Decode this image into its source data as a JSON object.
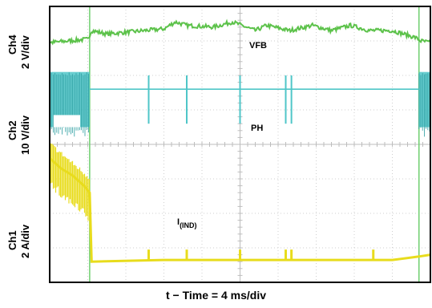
{
  "chart_data": {
    "type": "line",
    "title": "",
    "xlabel": "t − Time = 4 ms/div",
    "x_divisions": 10,
    "y_divisions": 8,
    "grid": true,
    "channel_labels": [
      {
        "ch": "Ch4",
        "scale": "2 V/div"
      },
      {
        "ch": "Ch2",
        "scale": "10 V/div"
      },
      {
        "ch": "Ch1",
        "scale": "2 A/div"
      }
    ],
    "signal_labels": {
      "vfb": "VFB",
      "ph": "PH",
      "iind_main": "I",
      "iind_sub": "(IND)"
    },
    "colors": {
      "ch4": "#5cc24a",
      "ch2": "#4fc6c8",
      "ch1": "#e8dc1c",
      "cursor": "#6fcf6f"
    },
    "cursors_div": [
      1.05,
      9.7
    ],
    "series": [
      {
        "channel": "Ch4",
        "label_ref": "vfb",
        "x_div": [
          0,
          0.5,
          1.0,
          1.1,
          1.5,
          2.0,
          2.5,
          3.0,
          3.3,
          3.6,
          4.3,
          4.8,
          5.4,
          5.7,
          6.3,
          6.9,
          7.4,
          7.9,
          8.4,
          9.0,
          9.6,
          9.75,
          10.0
        ],
        "y_div": [
          6.95,
          7.0,
          7.05,
          7.3,
          7.2,
          7.25,
          7.3,
          7.35,
          7.55,
          7.45,
          7.4,
          7.55,
          7.3,
          7.45,
          7.3,
          7.45,
          7.3,
          7.45,
          7.3,
          7.3,
          7.1,
          7.0,
          6.95
        ]
      },
      {
        "channel": "Ch2",
        "label_ref": "ph",
        "switching_bursts_div": [
          [
            0.0,
            1.05
          ],
          [
            9.7,
            10.0
          ]
        ],
        "burst_range_div": [
          4.5,
          6.1
        ],
        "baseline_div": 5.6,
        "spike_positions_div": [
          2.6,
          3.6,
          5.0,
          6.2,
          6.35
        ],
        "spike_range_div": [
          4.6,
          6.0
        ]
      },
      {
        "channel": "Ch1",
        "label_ref": "iind_main",
        "x_div": [
          0.0,
          0.3,
          0.6,
          0.9,
          1.05,
          1.1,
          3.0,
          5.0,
          7.0,
          9.0,
          9.7,
          10.0
        ],
        "y_div": [
          3.6,
          3.3,
          3.1,
          2.8,
          2.6,
          0.6,
          0.65,
          0.65,
          0.65,
          0.65,
          0.75,
          0.8
        ],
        "ripple_div": [
          0.0,
          1.05
        ],
        "pulse_positions_div": [
          2.6,
          3.6,
          5.0,
          6.2,
          6.35,
          8.5
        ],
        "pulse_height_div": 0.3
      }
    ]
  }
}
